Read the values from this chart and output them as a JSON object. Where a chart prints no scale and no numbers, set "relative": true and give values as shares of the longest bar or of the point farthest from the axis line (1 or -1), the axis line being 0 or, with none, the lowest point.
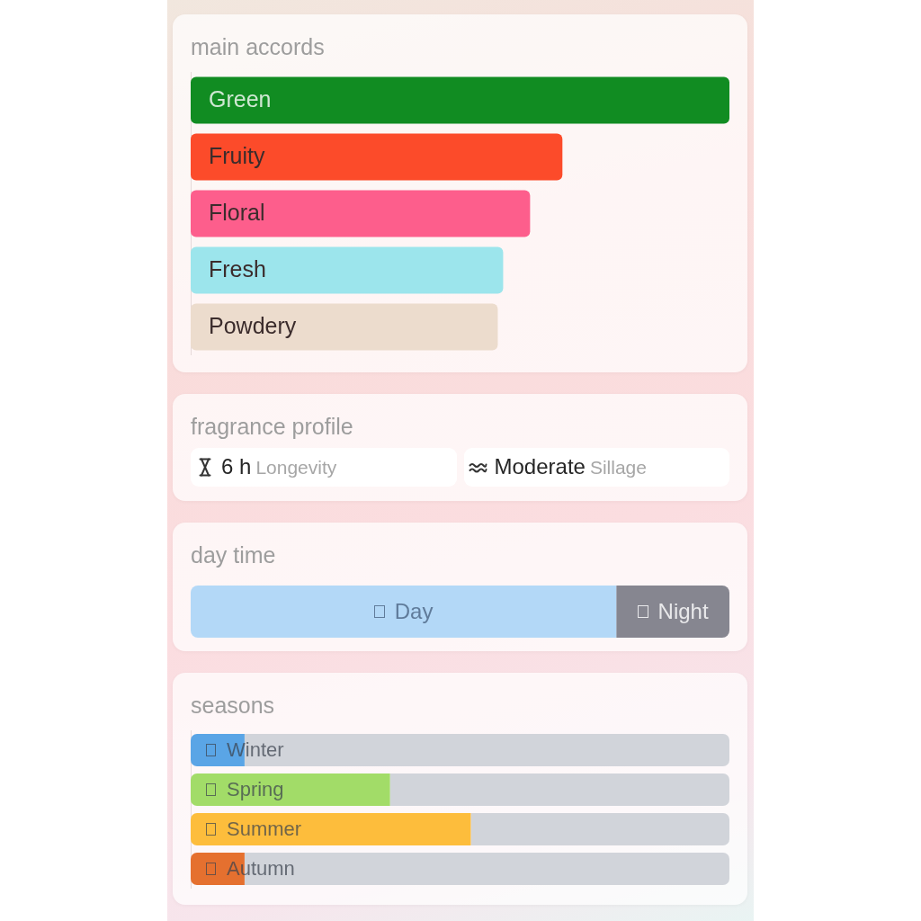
{
  "chart_data": [
    {
      "type": "bar",
      "title": "main accords",
      "orientation": "horizontal",
      "relative": true,
      "tick_labels": "y",
      "categories": [
        "Green",
        "Fruity",
        "Floral",
        "Fresh",
        "Powdery"
      ],
      "values": [
        1,
        0.69,
        0.63,
        0.58,
        0.57
      ],
      "colors": [
        "#118c22",
        "#fc4b2a",
        "#fd5e8c",
        "#9ce5ec",
        "#ecdccd"
      ]
    },
    {
      "type": "other",
      "title": "fragrance profile",
      "annotations": [
        "6 h",
        "Longevity",
        "Moderate",
        "Sillage"
      ]
    },
    {
      "type": "bar",
      "title": "day time",
      "orientation": "horizontal",
      "stacked": true,
      "relative": true,
      "categories": [
        null
      ],
      "series": [
        {
          "name": "Day",
          "color": "#b3d8f7",
          "values": [
            0.79
          ]
        },
        {
          "name": "Night",
          "color": "#868690",
          "values": [
            0.21
          ]
        }
      ]
    },
    {
      "type": "bar",
      "title": "seasons",
      "orientation": "horizontal",
      "stacked": true,
      "relative": true,
      "tick_labels": "y",
      "categories": [
        "Winter",
        "Spring",
        "Summer",
        "Autumn"
      ],
      "series": [
        {
          "colors": [
            "#5aa5e6",
            "#a2dc68",
            "#fdbd3c",
            "#e5702f"
          ],
          "values": [
            0.1,
            0.37,
            0.52,
            0.1
          ]
        },
        {
          "color": "#d1d4da",
          "values": [
            0.9,
            0.63,
            0.48,
            0.9
          ]
        }
      ]
    }
  ]
}
